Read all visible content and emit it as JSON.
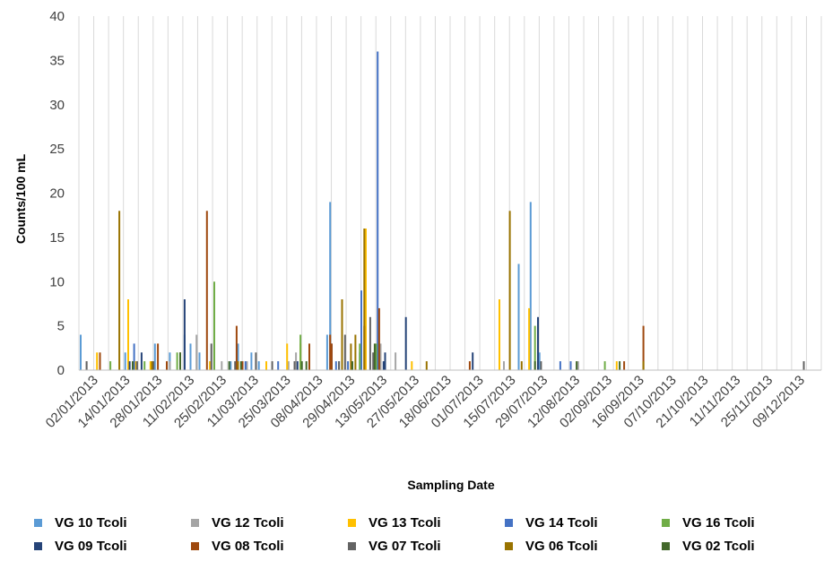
{
  "chart_data": {
    "type": "bar",
    "xlabel": "Sampling Date",
    "ylabel": "Counts/100 mL",
    "ylim": [
      0,
      40
    ],
    "y_ticks": [
      0,
      5,
      10,
      15,
      20,
      25,
      30,
      35,
      40
    ],
    "gridlines": "vertical",
    "legend_position": "bottom",
    "x_tick_labels": [
      "02/01/2013",
      "14/01/2013",
      "28/01/2013",
      "11/02/2013",
      "25/02/2013",
      "11/03/2013",
      "25/03/2013",
      "08/04/2013",
      "29/04/2013",
      "13/05/2013",
      "27/05/2013",
      "18/06/2013",
      "01/07/2013",
      "15/07/2013",
      "29/07/2013",
      "12/08/2013",
      "02/09/2013",
      "16/09/2013",
      "07/10/2013",
      "21/10/2013",
      "11/11/2013",
      "25/11/2013",
      "09/12/2013"
    ],
    "series": [
      {
        "name": "VG 10 Tcoli",
        "color": "#5b9bd5",
        "points": [
          [
            0,
            4
          ],
          [
            3,
            2
          ],
          [
            5,
            3
          ],
          [
            6,
            2
          ],
          [
            7,
            4
          ],
          [
            7.4,
            3
          ],
          [
            8,
            2
          ],
          [
            9,
            1
          ],
          [
            10.1,
            1
          ],
          [
            10.6,
            3
          ],
          [
            11.5,
            2
          ],
          [
            12,
            1
          ],
          [
            16.6,
            4
          ],
          [
            16.8,
            19
          ],
          [
            17.4,
            1
          ],
          [
            18.8,
            2
          ],
          [
            29.5,
            12
          ],
          [
            30.3,
            19
          ],
          [
            30.9,
            2
          ]
        ]
      },
      {
        "name": "VG 12 Tcoli",
        "color": "#a5a5a5",
        "points": [
          [
            0.4,
            1
          ],
          [
            6,
            1
          ],
          [
            7.8,
            4
          ],
          [
            9.5,
            1
          ],
          [
            11.2,
            1
          ],
          [
            14,
            1
          ],
          [
            14.5,
            2
          ],
          [
            20.2,
            3
          ],
          [
            21.2,
            2
          ],
          [
            28.5,
            1
          ],
          [
            33.5,
            1
          ]
        ]
      },
      {
        "name": "VG 13 Tcoli",
        "color": "#ffc000",
        "points": [
          [
            1.1,
            2
          ],
          [
            3.2,
            8
          ],
          [
            3.7,
            1
          ],
          [
            4.7,
            1
          ],
          [
            8.7,
            1
          ],
          [
            12.5,
            1
          ],
          [
            13.9,
            3
          ],
          [
            14.8,
            3
          ],
          [
            16.9,
            1
          ],
          [
            19.2,
            16
          ],
          [
            22.3,
            1
          ],
          [
            28.2,
            8
          ],
          [
            30.2,
            7
          ],
          [
            36.1,
            1
          ]
        ]
      },
      {
        "name": "VG 14 Tcoli",
        "color": "#4472c4",
        "points": [
          [
            3.6,
            3
          ],
          [
            11.1,
            1
          ],
          [
            13.3,
            1
          ],
          [
            17.2,
            1
          ],
          [
            18,
            1
          ],
          [
            18.9,
            9
          ],
          [
            20,
            36
          ],
          [
            32.3,
            1
          ],
          [
            33,
            1
          ]
        ]
      },
      {
        "name": "VG 16 Tcoli",
        "color": "#70ad47",
        "points": [
          [
            2,
            1
          ],
          [
            4.3,
            1
          ],
          [
            6.5,
            2
          ],
          [
            9,
            10
          ],
          [
            14.8,
            4
          ],
          [
            17.6,
            1
          ],
          [
            18.8,
            3
          ],
          [
            19.9,
            3
          ],
          [
            35.3,
            1
          ],
          [
            30.6,
            5
          ]
        ]
      },
      {
        "name": "VG 09 Tcoli",
        "color": "#264478",
        "points": [
          [
            3.3,
            1
          ],
          [
            4.1,
            2
          ],
          [
            7,
            8
          ],
          [
            14.6,
            1
          ],
          [
            16.9,
            3
          ],
          [
            20.4,
            1
          ],
          [
            20.5,
            2
          ],
          [
            21.9,
            6
          ],
          [
            26.4,
            2
          ],
          [
            30.8,
            6
          ]
        ]
      },
      {
        "name": "VG 08 Tcoli",
        "color": "#9e480e",
        "points": [
          [
            1.3,
            2
          ],
          [
            5.2,
            3
          ],
          [
            5.8,
            1
          ],
          [
            6.7,
            2
          ],
          [
            8.5,
            18
          ],
          [
            10.5,
            5
          ],
          [
            10.9,
            1
          ],
          [
            15.4,
            3
          ],
          [
            16.9,
            3
          ],
          [
            16.8,
            4
          ],
          [
            19.1,
            5
          ],
          [
            20.1,
            7
          ],
          [
            26.2,
            1
          ],
          [
            36.6,
            1
          ],
          [
            37.9,
            5
          ]
        ]
      },
      {
        "name": "VG 07 Tcoli",
        "color": "#636363",
        "points": [
          [
            0.4,
            1
          ],
          [
            3.8,
            1
          ],
          [
            4.9,
            1
          ],
          [
            8.8,
            3
          ],
          [
            10.4,
            1
          ],
          [
            11.8,
            2
          ],
          [
            12.9,
            1
          ],
          [
            14.4,
            1
          ],
          [
            17.4,
            1
          ],
          [
            17.8,
            4
          ],
          [
            19.5,
            6
          ],
          [
            19.7,
            2
          ],
          [
            31,
            1
          ],
          [
            48.7,
            1
          ]
        ]
      },
      {
        "name": "VG 06 Tcoli",
        "color": "#997300",
        "points": [
          [
            2.6,
            18
          ],
          [
            4.8,
            1
          ],
          [
            10.6,
            1
          ],
          [
            17.6,
            8
          ],
          [
            18.2,
            3
          ],
          [
            18.5,
            4
          ],
          [
            19.1,
            16
          ],
          [
            23.3,
            1
          ],
          [
            28.9,
            18
          ],
          [
            29.7,
            1
          ],
          [
            37.9,
            1
          ]
        ]
      },
      {
        "name": "VG 02 Tcoli",
        "color": "#43682b",
        "points": [
          [
            3.5,
            1
          ],
          [
            6.7,
            2
          ],
          [
            10,
            1
          ],
          [
            10.8,
            1
          ],
          [
            14.9,
            1
          ],
          [
            15.2,
            1
          ],
          [
            18.3,
            1
          ],
          [
            19.8,
            3
          ],
          [
            30.6,
            1
          ],
          [
            33.4,
            1
          ],
          [
            36.3,
            1
          ]
        ]
      }
    ]
  }
}
